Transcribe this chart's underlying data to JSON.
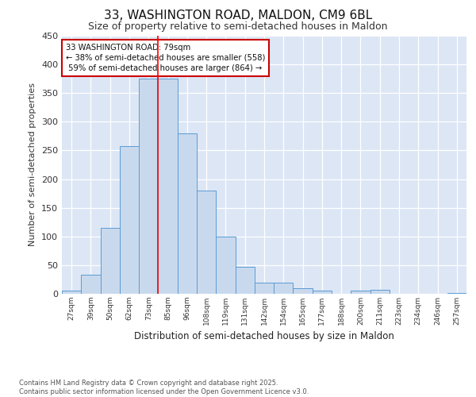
{
  "title_line1": "33, WASHINGTON ROAD, MALDON, CM9 6BL",
  "title_line2": "Size of property relative to semi-detached houses in Maldon",
  "xlabel": "Distribution of semi-detached houses by size in Maldon",
  "ylabel": "Number of semi-detached properties",
  "categories": [
    "27sqm",
    "39sqm",
    "50sqm",
    "62sqm",
    "73sqm",
    "85sqm",
    "96sqm",
    "108sqm",
    "119sqm",
    "131sqm",
    "142sqm",
    "154sqm",
    "165sqm",
    "177sqm",
    "188sqm",
    "200sqm",
    "211sqm",
    "223sqm",
    "234sqm",
    "246sqm",
    "257sqm"
  ],
  "values": [
    5,
    33,
    115,
    258,
    375,
    375,
    280,
    180,
    100,
    47,
    20,
    20,
    10,
    6,
    0,
    5,
    7,
    0,
    0,
    0,
    2
  ],
  "bar_color": "#c9d9ed",
  "bar_edge_color": "#5b9bd5",
  "property_bin_index": 4,
  "red_line_label": "33 WASHINGTON ROAD: 79sqm",
  "smaller_pct": 38,
  "smaller_count": 558,
  "larger_pct": 59,
  "larger_count": 864,
  "ylim": [
    0,
    450
  ],
  "yticks": [
    0,
    50,
    100,
    150,
    200,
    250,
    300,
    350,
    400,
    450
  ],
  "annotation_box_edge_color": "#cc0000",
  "footer_line1": "Contains HM Land Registry data © Crown copyright and database right 2025.",
  "footer_line2": "Contains public sector information licensed under the Open Government Licence v3.0.",
  "plot_bg_color": "#dce6f5"
}
